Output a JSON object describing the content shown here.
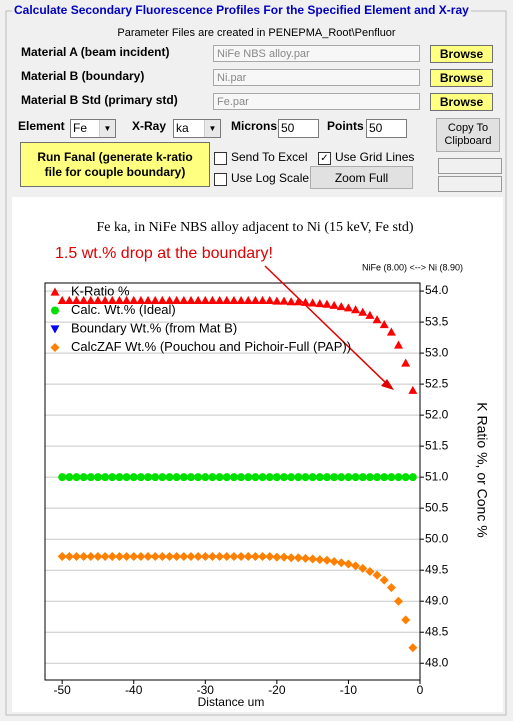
{
  "window": {
    "title": "Calculate Secondary Fluorescence Profiles For the Specified Element and X-ray",
    "parameter_note": "Parameter Files are created in PENEPMA_Root\\Penfluor"
  },
  "materials": [
    {
      "label": "Material A (beam incident)",
      "file": "NiFe NBS alloy.par",
      "button": "Browse"
    },
    {
      "label": "Material B (boundary)",
      "file": "Ni.par",
      "button": "Browse"
    },
    {
      "label": "Material B Std (primary std)",
      "file": "Fe.par",
      "button": "Browse"
    }
  ],
  "element": {
    "label": "Element",
    "value": "Fe"
  },
  "xray": {
    "label": "X-Ray",
    "value": "ka"
  },
  "microns": {
    "label": "Microns",
    "value": 50
  },
  "points": {
    "label": "Points",
    "value": 50
  },
  "buttons": {
    "copy": "Copy To Clipboard",
    "run": "Run Fanal (generate k-ratio file for couple boundary)",
    "zoom": "Zoom Full"
  },
  "options": [
    {
      "label": "Send To Excel",
      "checked": false
    },
    {
      "label": "Use Grid Lines",
      "checked": true
    },
    {
      "label": "Use Log Scale",
      "checked": false
    }
  ],
  "chart_data": {
    "type": "scatter",
    "title": "Fe ka, in NiFe NBS alloy adjacent to Ni (15 keV, Fe std)",
    "annotation": "1.5 wt.% drop at the boundary!",
    "subtitle": "NiFe (8.00) <--> Ni (8.90)",
    "x_label": "Distance um",
    "y_label": "K Ratio %, or Conc %",
    "x": [
      -50,
      -49,
      -48,
      -47,
      -46,
      -45,
      -44,
      -43,
      -42,
      -41,
      -40,
      -39,
      -38,
      -37,
      -36,
      -35,
      -34,
      -33,
      -32,
      -31,
      -30,
      -29,
      -28,
      -27,
      -26,
      -25,
      -24,
      -23,
      -22,
      -21,
      -20,
      -19,
      -18,
      -17,
      -16,
      -15,
      -14,
      -13,
      -12,
      -11,
      -10,
      -9,
      -8,
      -7,
      -6,
      -5,
      -4,
      -3,
      -2,
      -1
    ],
    "series": [
      {
        "name": "K-Ratio %",
        "color": "#ff0000",
        "marker": "triangle",
        "values": [
          53.85,
          53.85,
          53.85,
          53.85,
          53.85,
          53.85,
          53.85,
          53.85,
          53.85,
          53.85,
          53.85,
          53.85,
          53.85,
          53.85,
          53.85,
          53.85,
          53.85,
          53.85,
          53.85,
          53.85,
          53.85,
          53.85,
          53.85,
          53.85,
          53.85,
          53.85,
          53.85,
          53.85,
          53.85,
          53.85,
          53.84,
          53.84,
          53.83,
          53.83,
          53.82,
          53.81,
          53.8,
          53.79,
          53.77,
          53.75,
          53.73,
          53.7,
          53.66,
          53.61,
          53.54,
          53.46,
          53.34,
          53.13,
          52.84,
          52.4
        ]
      },
      {
        "name": "Calc. Wt.% (Ideal)",
        "color": "#00e000",
        "marker": "circle",
        "values": [
          51,
          51,
          51,
          51,
          51,
          51,
          51,
          51,
          51,
          51,
          51,
          51,
          51,
          51,
          51,
          51,
          51,
          51,
          51,
          51,
          51,
          51,
          51,
          51,
          51,
          51,
          51,
          51,
          51,
          51,
          51,
          51,
          51,
          51,
          51,
          51,
          51,
          51,
          51,
          51,
          51,
          51,
          51,
          51,
          51,
          51,
          51,
          51,
          51,
          51
        ]
      },
      {
        "name": "Boundary Wt.% (from Mat B)",
        "color": "#0000ff",
        "marker": "triangle-down"
      },
      {
        "name": "CalcZAF Wt.% (Pouchou and Pichoir-Full (PAP))",
        "color": "#ff8000",
        "marker": "diamond",
        "values": [
          49.72,
          49.72,
          49.72,
          49.72,
          49.72,
          49.72,
          49.72,
          49.72,
          49.72,
          49.72,
          49.72,
          49.72,
          49.72,
          49.72,
          49.72,
          49.72,
          49.72,
          49.72,
          49.72,
          49.72,
          49.72,
          49.72,
          49.72,
          49.72,
          49.72,
          49.72,
          49.72,
          49.72,
          49.72,
          49.72,
          49.71,
          49.71,
          49.7,
          49.7,
          49.69,
          49.68,
          49.67,
          49.66,
          49.64,
          49.62,
          49.6,
          49.57,
          49.53,
          49.48,
          49.42,
          49.34,
          49.22,
          49.0,
          48.7,
          48.25
        ]
      }
    ],
    "xlim": [
      -52.4,
      0
    ],
    "xticks": [
      -50,
      -40,
      -30,
      -20,
      -10,
      0
    ],
    "ylim": [
      47.73,
      54.13
    ],
    "yticks": [
      {
        "value": 48,
        "label": "48.0"
      },
      48.5,
      {
        "value": 49,
        "label": "49.0"
      },
      49.5,
      {
        "value": 50,
        "label": "50.0"
      },
      50.5,
      {
        "value": 51,
        "label": "51.0"
      },
      51.5,
      {
        "value": 52,
        "label": "52.0"
      },
      52.5,
      {
        "value": 53,
        "label": "53.0"
      },
      53.5,
      {
        "value": 54,
        "label": "54.0"
      }
    ],
    "grid": true,
    "legend": "upper left"
  }
}
